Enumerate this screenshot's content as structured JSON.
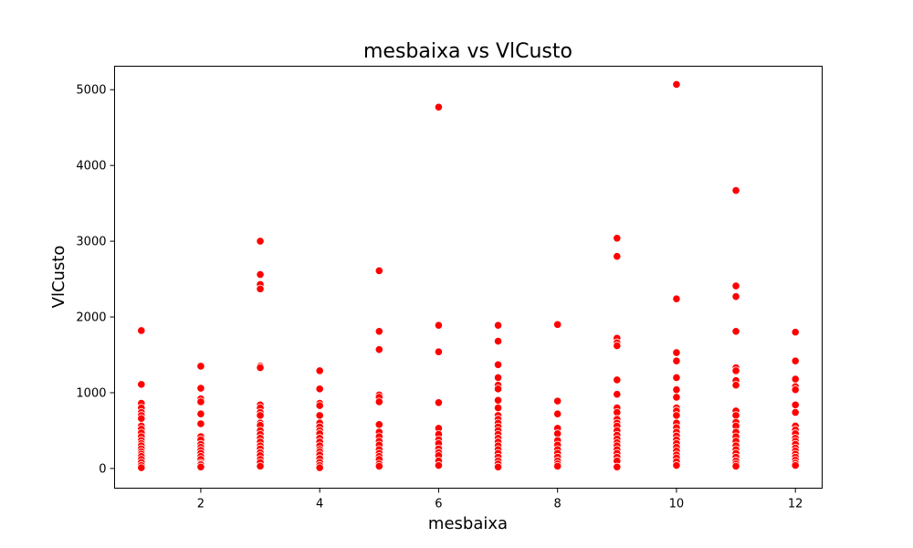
{
  "chart_data": {
    "type": "scatter",
    "title": "mesbaixa vs VlCusto",
    "xlabel": "mesbaixa",
    "ylabel": "VlCusto",
    "xlim": [
      0.55,
      12.45
    ],
    "ylim": [
      -260,
      5310
    ],
    "xticks": [
      2,
      4,
      6,
      8,
      10,
      12
    ],
    "yticks": [
      0,
      1000,
      2000,
      3000,
      4000,
      5000
    ],
    "grid": false,
    "marker_color": "#ff0000",
    "series": [
      {
        "points": [
          [
            1,
            1820
          ],
          [
            1,
            1110
          ],
          [
            1,
            860
          ],
          [
            1,
            800
          ],
          [
            1,
            740
          ],
          [
            1,
            700
          ],
          [
            1,
            660
          ],
          [
            1,
            560
          ],
          [
            1,
            520
          ],
          [
            1,
            470
          ],
          [
            1,
            420
          ],
          [
            1,
            370
          ],
          [
            1,
            330
          ],
          [
            1,
            300
          ],
          [
            1,
            260
          ],
          [
            1,
            220
          ],
          [
            1,
            190
          ],
          [
            1,
            160
          ],
          [
            1,
            120
          ],
          [
            1,
            80
          ],
          [
            1,
            40
          ],
          [
            1,
            10
          ],
          [
            2,
            1350
          ],
          [
            2,
            1060
          ],
          [
            2,
            920
          ],
          [
            2,
            880
          ],
          [
            2,
            720
          ],
          [
            2,
            590
          ],
          [
            2,
            420
          ],
          [
            2,
            380
          ],
          [
            2,
            320
          ],
          [
            2,
            280
          ],
          [
            2,
            240
          ],
          [
            2,
            200
          ],
          [
            2,
            160
          ],
          [
            2,
            120
          ],
          [
            2,
            70
          ],
          [
            2,
            50
          ],
          [
            2,
            20
          ],
          [
            3,
            3000
          ],
          [
            3,
            2560
          ],
          [
            3,
            2430
          ],
          [
            3,
            2370
          ],
          [
            3,
            1350
          ],
          [
            3,
            1330
          ],
          [
            3,
            840
          ],
          [
            3,
            800
          ],
          [
            3,
            740
          ],
          [
            3,
            700
          ],
          [
            3,
            600
          ],
          [
            3,
            570
          ],
          [
            3,
            500
          ],
          [
            3,
            450
          ],
          [
            3,
            400
          ],
          [
            3,
            350
          ],
          [
            3,
            300
          ],
          [
            3,
            260
          ],
          [
            3,
            210
          ],
          [
            3,
            170
          ],
          [
            3,
            120
          ],
          [
            3,
            80
          ],
          [
            3,
            30
          ],
          [
            4,
            1290
          ],
          [
            4,
            1050
          ],
          [
            4,
            860
          ],
          [
            4,
            830
          ],
          [
            4,
            700
          ],
          [
            4,
            600
          ],
          [
            4,
            550
          ],
          [
            4,
            500
          ],
          [
            4,
            460
          ],
          [
            4,
            400
          ],
          [
            4,
            350
          ],
          [
            4,
            300
          ],
          [
            4,
            250
          ],
          [
            4,
            220
          ],
          [
            4,
            180
          ],
          [
            4,
            130
          ],
          [
            4,
            80
          ],
          [
            4,
            40
          ],
          [
            4,
            10
          ],
          [
            5,
            2610
          ],
          [
            5,
            1810
          ],
          [
            5,
            1570
          ],
          [
            5,
            970
          ],
          [
            5,
            940
          ],
          [
            5,
            880
          ],
          [
            5,
            580
          ],
          [
            5,
            480
          ],
          [
            5,
            420
          ],
          [
            5,
            360
          ],
          [
            5,
            310
          ],
          [
            5,
            250
          ],
          [
            5,
            200
          ],
          [
            5,
            160
          ],
          [
            5,
            120
          ],
          [
            5,
            60
          ],
          [
            5,
            30
          ],
          [
            6,
            4770
          ],
          [
            6,
            1890
          ],
          [
            6,
            1540
          ],
          [
            6,
            870
          ],
          [
            6,
            530
          ],
          [
            6,
            450
          ],
          [
            6,
            380
          ],
          [
            6,
            330
          ],
          [
            6,
            260
          ],
          [
            6,
            210
          ],
          [
            6,
            170
          ],
          [
            6,
            100
          ],
          [
            6,
            40
          ],
          [
            7,
            1890
          ],
          [
            7,
            1680
          ],
          [
            7,
            1370
          ],
          [
            7,
            1200
          ],
          [
            7,
            1100
          ],
          [
            7,
            1050
          ],
          [
            7,
            900
          ],
          [
            7,
            800
          ],
          [
            7,
            700
          ],
          [
            7,
            650
          ],
          [
            7,
            600
          ],
          [
            7,
            550
          ],
          [
            7,
            500
          ],
          [
            7,
            450
          ],
          [
            7,
            400
          ],
          [
            7,
            350
          ],
          [
            7,
            300
          ],
          [
            7,
            250
          ],
          [
            7,
            200
          ],
          [
            7,
            150
          ],
          [
            7,
            100
          ],
          [
            7,
            60
          ],
          [
            7,
            20
          ],
          [
            8,
            1900
          ],
          [
            8,
            890
          ],
          [
            8,
            720
          ],
          [
            8,
            530
          ],
          [
            8,
            460
          ],
          [
            8,
            370
          ],
          [
            8,
            310
          ],
          [
            8,
            250
          ],
          [
            8,
            200
          ],
          [
            8,
            150
          ],
          [
            8,
            100
          ],
          [
            8,
            60
          ],
          [
            8,
            30
          ],
          [
            9,
            3040
          ],
          [
            9,
            2800
          ],
          [
            9,
            1720
          ],
          [
            9,
            1660
          ],
          [
            9,
            1620
          ],
          [
            9,
            1170
          ],
          [
            9,
            980
          ],
          [
            9,
            800
          ],
          [
            9,
            740
          ],
          [
            9,
            650
          ],
          [
            9,
            600
          ],
          [
            9,
            560
          ],
          [
            9,
            500
          ],
          [
            9,
            440
          ],
          [
            9,
            390
          ],
          [
            9,
            340
          ],
          [
            9,
            300
          ],
          [
            9,
            250
          ],
          [
            9,
            200
          ],
          [
            9,
            150
          ],
          [
            9,
            100
          ],
          [
            9,
            20
          ],
          [
            10,
            5070
          ],
          [
            10,
            2240
          ],
          [
            10,
            1530
          ],
          [
            10,
            1420
          ],
          [
            10,
            1200
          ],
          [
            10,
            1040
          ],
          [
            10,
            940
          ],
          [
            10,
            800
          ],
          [
            10,
            760
          ],
          [
            10,
            700
          ],
          [
            10,
            600
          ],
          [
            10,
            540
          ],
          [
            10,
            480
          ],
          [
            10,
            430
          ],
          [
            10,
            380
          ],
          [
            10,
            330
          ],
          [
            10,
            280
          ],
          [
            10,
            230
          ],
          [
            10,
            180
          ],
          [
            10,
            140
          ],
          [
            10,
            90
          ],
          [
            10,
            40
          ],
          [
            11,
            3670
          ],
          [
            11,
            2410
          ],
          [
            11,
            2270
          ],
          [
            11,
            1810
          ],
          [
            11,
            1330
          ],
          [
            11,
            1290
          ],
          [
            11,
            1160
          ],
          [
            11,
            1100
          ],
          [
            11,
            760
          ],
          [
            11,
            700
          ],
          [
            11,
            610
          ],
          [
            11,
            560
          ],
          [
            11,
            480
          ],
          [
            11,
            420
          ],
          [
            11,
            360
          ],
          [
            11,
            300
          ],
          [
            11,
            250
          ],
          [
            11,
            200
          ],
          [
            11,
            150
          ],
          [
            11,
            100
          ],
          [
            11,
            60
          ],
          [
            11,
            30
          ],
          [
            12,
            1800
          ],
          [
            12,
            1420
          ],
          [
            12,
            1180
          ],
          [
            12,
            1080
          ],
          [
            12,
            1040
          ],
          [
            12,
            840
          ],
          [
            12,
            740
          ],
          [
            12,
            560
          ],
          [
            12,
            510
          ],
          [
            12,
            460
          ],
          [
            12,
            400
          ],
          [
            12,
            360
          ],
          [
            12,
            320
          ],
          [
            12,
            270
          ],
          [
            12,
            230
          ],
          [
            12,
            190
          ],
          [
            12,
            150
          ],
          [
            12,
            110
          ],
          [
            12,
            70
          ],
          [
            12,
            40
          ]
        ]
      }
    ]
  }
}
